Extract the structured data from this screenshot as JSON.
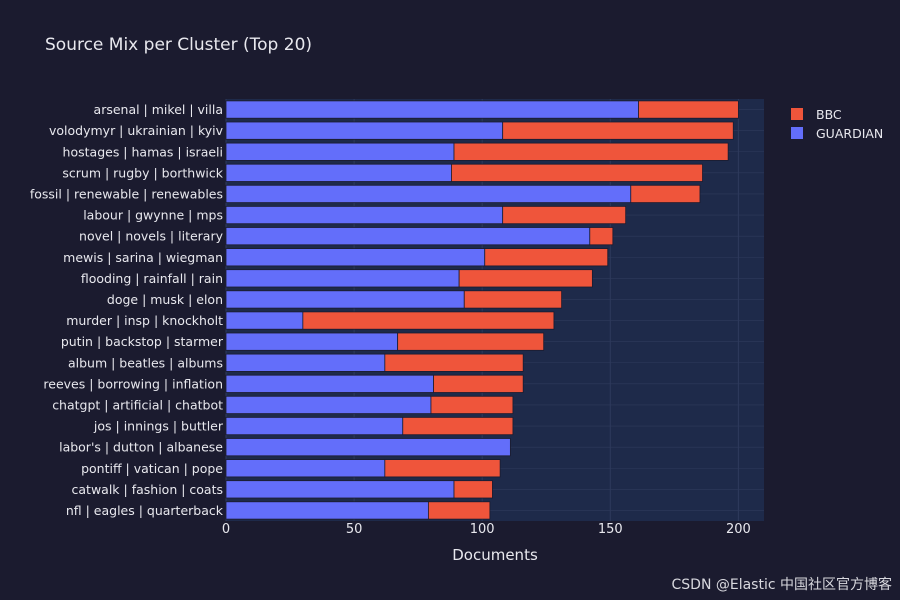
{
  "chart_data": {
    "type": "bar",
    "orientation": "horizontal",
    "stacked": true,
    "title": "Source Mix per Cluster (Top 20)",
    "xlabel": "Documents",
    "ylabel": "",
    "xlim": [
      0,
      210
    ],
    "xticks": [
      0,
      50,
      100,
      150,
      200
    ],
    "grid": true,
    "legend_position": "top-right",
    "categories": [
      "arsenal | mikel | villa",
      "volodymyr | ukrainian | kyiv",
      "hostages | hamas | israeli",
      "scrum | rugby | borthwick",
      "fossil | renewable | renewables",
      "labour | gwynne | mps",
      "novel | novels | literary",
      "mewis | sarina | wiegman",
      "flooding | rainfall | rain",
      "doge | musk | elon",
      "murder | insp | knockholt",
      "putin | backstop | starmer",
      "album | beatles | albums",
      "reeves | borrowing | inflation",
      "chatgpt | artificial | chatbot",
      "jos | innings | buttler",
      "labor's | dutton | albanese",
      "pontiff | vatican | pope",
      "catwalk | fashion | coats",
      "nfl | eagles | quarterback"
    ],
    "series": [
      {
        "name": "GUARDIAN",
        "color": "#636efa",
        "values": [
          161,
          108,
          89,
          88,
          158,
          108,
          142,
          101,
          91,
          93,
          30,
          67,
          62,
          81,
          80,
          69,
          111,
          62,
          89,
          79
        ]
      },
      {
        "name": "BBC",
        "color": "#ef553b",
        "values": [
          39,
          90,
          107,
          98,
          27,
          48,
          9,
          48,
          52,
          38,
          98,
          57,
          54,
          35,
          32,
          43,
          0,
          45,
          15,
          24
        ]
      }
    ],
    "legend_order": [
      "BBC",
      "GUARDIAN"
    ]
  },
  "watermark": "CSDN @Elastic 中国社区官方博客",
  "colors": {
    "background": "#1b1b2f",
    "plot_background": "#1e2a4a",
    "grid": "#2e3a5c",
    "text": "#e8e8ee"
  }
}
